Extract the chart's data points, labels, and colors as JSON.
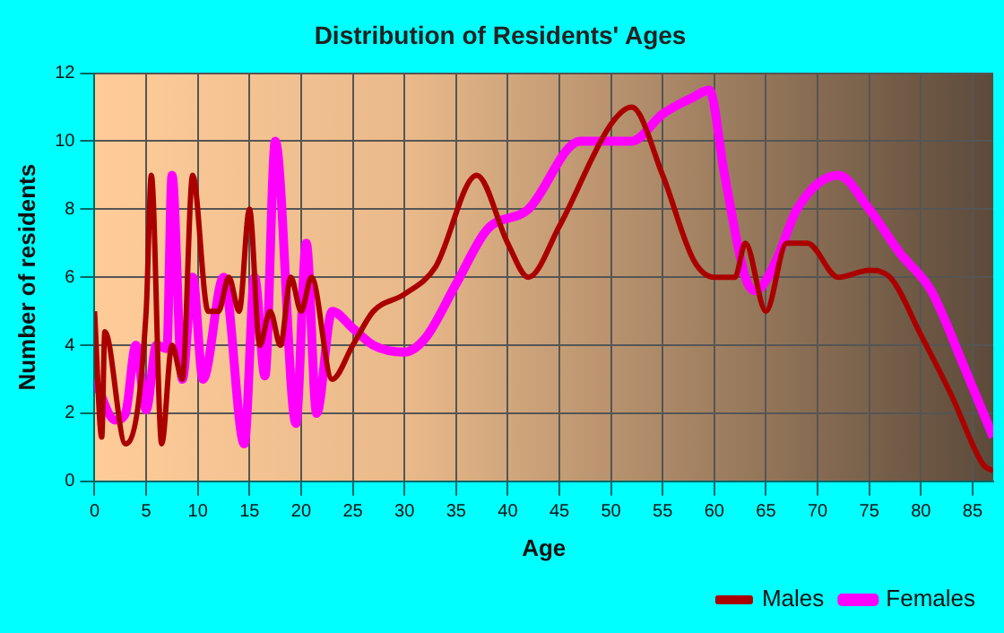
{
  "chart_data": {
    "type": "line",
    "title": "Distribution of Residents' Ages",
    "xlabel": "Age",
    "ylabel": "Number of residents",
    "xlim": [
      0,
      87
    ],
    "xticks": [
      0,
      5,
      10,
      15,
      20,
      25,
      30,
      35,
      40,
      45,
      50,
      55,
      60,
      65,
      70,
      75,
      80,
      85
    ],
    "ylim": [
      0,
      12
    ],
    "yticks": [
      0,
      2,
      4,
      6,
      8,
      10,
      12
    ],
    "grid": true,
    "legend": "bottom right",
    "marker": "none",
    "line_style": "solid",
    "series": [
      {
        "name": "Males",
        "color": "#aa0000",
        "x": [
          0,
          0.7,
          1,
          3,
          5,
          5.5,
          6.5,
          7.5,
          8.5,
          9.5,
          11,
          12,
          13,
          14,
          15,
          16,
          17,
          18,
          19,
          20,
          21,
          23,
          25,
          27,
          30,
          33,
          37,
          40,
          42,
          45,
          50,
          52,
          55,
          58,
          60,
          62,
          63,
          65,
          67,
          69,
          72,
          75,
          77,
          80,
          83,
          86,
          87
        ],
        "values": [
          5,
          1.3,
          4.4,
          1.1,
          5,
          9,
          1.1,
          4,
          3,
          9,
          5,
          5,
          6,
          5,
          8,
          4,
          5,
          4,
          6,
          5,
          6,
          3,
          4,
          5,
          5.5,
          6.3,
          9,
          7,
          6,
          7.5,
          10.5,
          11,
          9,
          6.5,
          6,
          6,
          7,
          5,
          7,
          7,
          6,
          6.2,
          6,
          4.3,
          2.5,
          0.5,
          0.3
        ]
      },
      {
        "name": "Females",
        "color": "#ff00ff",
        "x": [
          0,
          2,
          3,
          4,
          5,
          6,
          7,
          7.5,
          8.5,
          9.5,
          10.5,
          12.5,
          14.5,
          15.5,
          16.5,
          17.5,
          19.5,
          20.5,
          21.5,
          23,
          25,
          27,
          30,
          32,
          35,
          38,
          42,
          47,
          50,
          52,
          55,
          58,
          59.5,
          61,
          63,
          64,
          66,
          68,
          72,
          75,
          78,
          81,
          84,
          87
        ],
        "values": [
          3,
          1.8,
          2,
          4,
          2.1,
          4,
          3.9,
          9,
          3,
          6,
          3,
          6,
          1.1,
          6,
          3.1,
          10,
          1.7,
          7,
          2,
          5,
          4.5,
          4,
          3.8,
          4.2,
          5.8,
          7.4,
          8,
          10,
          10,
          10,
          10.8,
          11.3,
          11.5,
          9,
          6,
          5.6,
          6.5,
          8,
          9,
          8,
          6.7,
          5.6,
          3.5,
          1.3
        ]
      }
    ]
  }
}
